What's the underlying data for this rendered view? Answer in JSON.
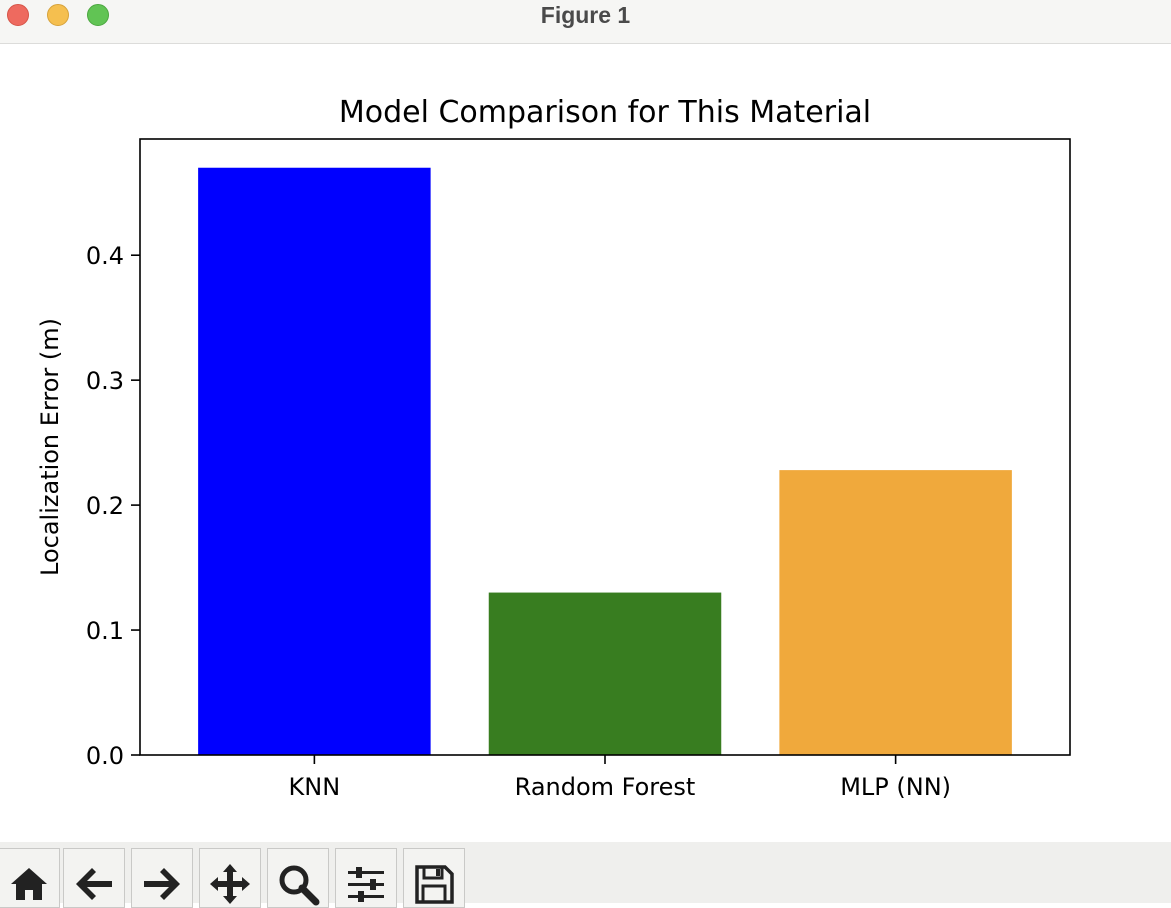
{
  "window": {
    "title": "Figure 1"
  },
  "toolbar": {
    "tools": [
      {
        "name": "home-icon"
      },
      {
        "name": "back-arrow-icon"
      },
      {
        "name": "forward-arrow-icon"
      },
      {
        "name": "pan-move-icon"
      },
      {
        "name": "zoom-magnifier-icon"
      },
      {
        "name": "configure-subplots-icon"
      },
      {
        "name": "save-floppy-icon"
      }
    ]
  },
  "chart_data": {
    "type": "bar",
    "title": "Model Comparison for This Material",
    "xlabel": "",
    "ylabel": "Localization Error (m)",
    "categories": [
      "KNN",
      "Random Forest",
      "MLP (NN)"
    ],
    "values": [
      0.47,
      0.13,
      0.228
    ],
    "colors": [
      "#0000ff",
      "#387d20",
      "#f0a93c"
    ],
    "ylim": [
      0,
      0.493
    ],
    "yticks": [
      0.0,
      0.1,
      0.2,
      0.3,
      0.4
    ],
    "ytick_labels": [
      "0.0",
      "0.1",
      "0.2",
      "0.3",
      "0.4"
    ],
    "grid": false,
    "legend": "none"
  }
}
